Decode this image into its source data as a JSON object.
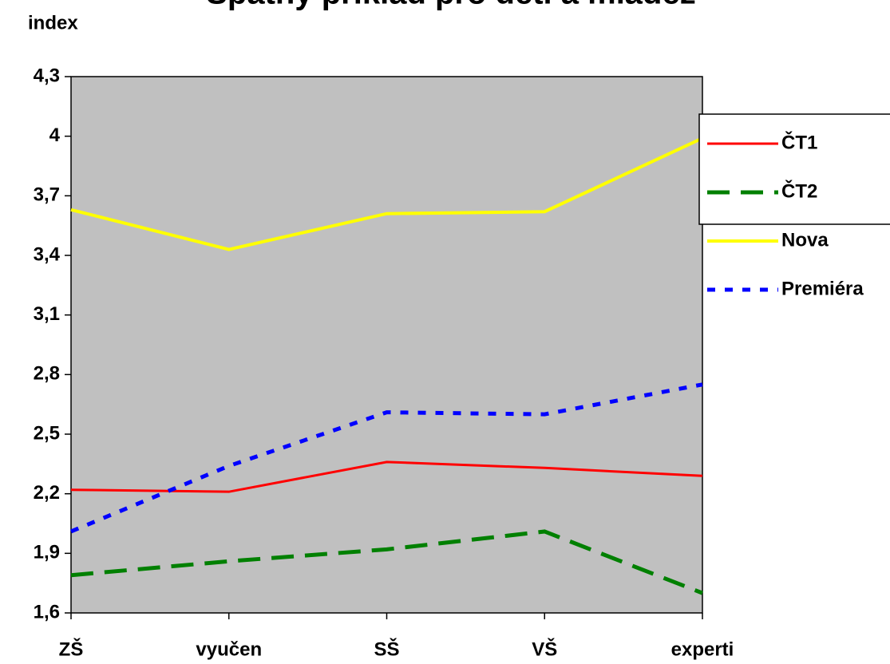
{
  "chart_data": {
    "type": "line",
    "title": "Špatný příklad pro děti a mládež",
    "ylabel": "index",
    "categories": [
      "ZŠ",
      "vyučen",
      "SŠ",
      "VŠ",
      "experti"
    ],
    "series": [
      {
        "name": "ČT1",
        "color": "#ff0000",
        "dash": "solid",
        "values": [
          2.22,
          2.21,
          2.36,
          2.33,
          2.29
        ]
      },
      {
        "name": "ČT2",
        "color": "#008000",
        "dash": "dashed",
        "values": [
          1.79,
          1.86,
          1.92,
          2.01,
          1.7
        ]
      },
      {
        "name": "Nova",
        "color": "#ffff00",
        "dash": "solid",
        "values": [
          3.63,
          3.43,
          3.61,
          3.62,
          3.99
        ]
      },
      {
        "name": "Premiéra",
        "color": "#0000ff",
        "dash": "dotted",
        "values": [
          2.01,
          2.34,
          2.61,
          2.6,
          2.75
        ]
      }
    ],
    "ylim": [
      1.6,
      4.3
    ],
    "yticks": [
      {
        "value": 1.6,
        "label": "1,6"
      },
      {
        "value": 1.9,
        "label": "1,9"
      },
      {
        "value": 2.2,
        "label": "2,2"
      },
      {
        "value": 2.5,
        "label": "2,5"
      },
      {
        "value": 2.8,
        "label": "2,8"
      },
      {
        "value": 3.1,
        "label": "3,1"
      },
      {
        "value": 3.4,
        "label": "3,4"
      },
      {
        "value": 3.7,
        "label": "3,7"
      },
      4,
      {
        "value": 4.3,
        "label": "4,3"
      }
    ],
    "plot_background": "#c0c0c0",
    "legend": "right"
  }
}
